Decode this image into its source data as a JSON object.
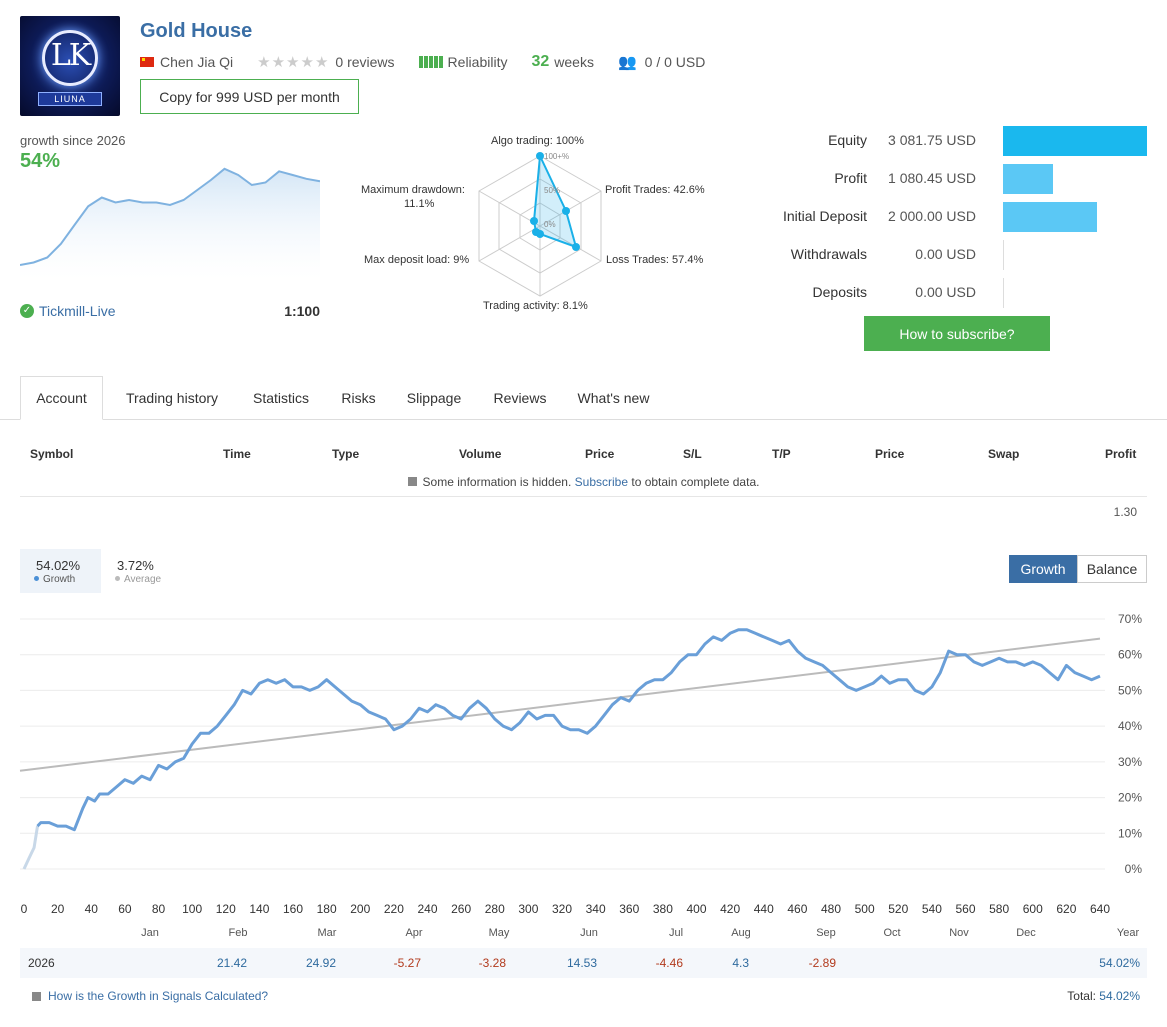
{
  "header": {
    "logo_text": "LK",
    "logo_brand": "LIUNA",
    "title": "Gold House",
    "author": "Chen Jia Qi",
    "reviews": "0 reviews",
    "reliability_label": "Reliability",
    "weeks_num": "32",
    "weeks_label": "weeks",
    "subscribers": "0 / 0 USD",
    "copy_button": "Copy for 999 USD per month"
  },
  "summary": {
    "growth_since": "growth since 2026",
    "growth_pct": "54%",
    "broker": "Tickmill-Live",
    "leverage": "1:100"
  },
  "radar": {
    "algo": "Algo trading: 100%",
    "profit_trades": "Profit Trades: 42.6%",
    "loss_trades": "Loss Trades: 57.4%",
    "activity": "Trading activity: 8.1%",
    "deposit_load": "Max deposit load: 9%",
    "drawdown_l1": "Maximum drawdown:",
    "drawdown_l2": "11.1%",
    "scale_100": "100+%",
    "scale_50": "50%",
    "scale_0": "0%"
  },
  "stats": [
    {
      "label": "Equity",
      "value": "3 081.75 USD",
      "fill": 1.0,
      "color": "#1ab8ee"
    },
    {
      "label": "Profit",
      "value": "1 080.45 USD",
      "fill": 0.35,
      "color": "#5bc8f5"
    },
    {
      "label": "Initial Deposit",
      "value": "2 000.00 USD",
      "fill": 0.65,
      "color": "#5bc8f5"
    },
    {
      "label": "Withdrawals",
      "value": "0.00 USD",
      "fill": 0,
      "color": "#5bc8f5"
    },
    {
      "label": "Deposits",
      "value": "0.00 USD",
      "fill": 0,
      "color": "#5bc8f5"
    }
  ],
  "subscribe_button": "How to subscribe?",
  "tabs": [
    "Account",
    "Trading history",
    "Statistics",
    "Risks",
    "Slippage",
    "Reviews",
    "What's new"
  ],
  "table": {
    "headers": [
      "Symbol",
      "Time",
      "Type",
      "Volume",
      "Price",
      "S/L",
      "T/P",
      "Price",
      "Swap",
      "Profit"
    ],
    "hidden_text_1": "Some information is hidden.",
    "hidden_link": "Subscribe",
    "hidden_text_2": "to obtain complete data.",
    "total_profit": "1.30"
  },
  "growth_panel": {
    "growth_value": "54.02%",
    "growth_label": "Growth",
    "average_value": "3.72%",
    "average_label": "Average",
    "btn_growth": "Growth",
    "btn_balance": "Balance"
  },
  "chart_data": {
    "type": "line",
    "x_ticks": [
      "0",
      "20",
      "40",
      "60",
      "80",
      "100",
      "120",
      "140",
      "160",
      "180",
      "200",
      "220",
      "240",
      "260",
      "280",
      "300",
      "320",
      "340",
      "360",
      "380",
      "400",
      "420",
      "440",
      "460",
      "480",
      "500",
      "520",
      "540",
      "560",
      "580",
      "600",
      "620",
      "640"
    ],
    "y_ticks": [
      "70%",
      "60%",
      "50%",
      "40%",
      "30%",
      "20%",
      "10%",
      "0%"
    ],
    "xlim": [
      0,
      640
    ],
    "ylim": [
      0,
      70
    ],
    "series": [
      {
        "name": "Growth",
        "color": "#6a9fd8",
        "points": [
          [
            0,
            0
          ],
          [
            3,
            3
          ],
          [
            6,
            6
          ],
          [
            8,
            12
          ],
          [
            10,
            13
          ],
          [
            15,
            13
          ],
          [
            20,
            12
          ],
          [
            25,
            12
          ],
          [
            30,
            11
          ],
          [
            35,
            17
          ],
          [
            38,
            20
          ],
          [
            42,
            19
          ],
          [
            45,
            21
          ],
          [
            50,
            21
          ],
          [
            55,
            23
          ],
          [
            60,
            25
          ],
          [
            65,
            24
          ],
          [
            70,
            26
          ],
          [
            75,
            25
          ],
          [
            80,
            29
          ],
          [
            85,
            28
          ],
          [
            90,
            30
          ],
          [
            95,
            31
          ],
          [
            100,
            35
          ],
          [
            105,
            38
          ],
          [
            110,
            38
          ],
          [
            115,
            40
          ],
          [
            120,
            43
          ],
          [
            125,
            46
          ],
          [
            130,
            50
          ],
          [
            135,
            49
          ],
          [
            140,
            52
          ],
          [
            145,
            53
          ],
          [
            150,
            52
          ],
          [
            155,
            53
          ],
          [
            160,
            51
          ],
          [
            165,
            51
          ],
          [
            170,
            50
          ],
          [
            175,
            51
          ],
          [
            180,
            53
          ],
          [
            185,
            51
          ],
          [
            190,
            49
          ],
          [
            195,
            47
          ],
          [
            200,
            46
          ],
          [
            205,
            44
          ],
          [
            210,
            43
          ],
          [
            215,
            42
          ],
          [
            220,
            39
          ],
          [
            225,
            40
          ],
          [
            230,
            42
          ],
          [
            235,
            45
          ],
          [
            240,
            44
          ],
          [
            245,
            46
          ],
          [
            250,
            45
          ],
          [
            255,
            43
          ],
          [
            260,
            42
          ],
          [
            265,
            45
          ],
          [
            270,
            47
          ],
          [
            275,
            45
          ],
          [
            280,
            42
          ],
          [
            285,
            40
          ],
          [
            290,
            39
          ],
          [
            295,
            41
          ],
          [
            300,
            44
          ],
          [
            305,
            42
          ],
          [
            310,
            43
          ],
          [
            315,
            43
          ],
          [
            320,
            40
          ],
          [
            325,
            39
          ],
          [
            330,
            39
          ],
          [
            335,
            38
          ],
          [
            340,
            40
          ],
          [
            345,
            43
          ],
          [
            350,
            46
          ],
          [
            355,
            48
          ],
          [
            360,
            47
          ],
          [
            365,
            50
          ],
          [
            370,
            52
          ],
          [
            375,
            53
          ],
          [
            380,
            53
          ],
          [
            385,
            55
          ],
          [
            390,
            58
          ],
          [
            395,
            60
          ],
          [
            400,
            60
          ],
          [
            405,
            63
          ],
          [
            410,
            65
          ],
          [
            415,
            64
          ],
          [
            420,
            66
          ],
          [
            425,
            67
          ],
          [
            430,
            67
          ],
          [
            435,
            66
          ],
          [
            440,
            65
          ],
          [
            445,
            64
          ],
          [
            450,
            63
          ],
          [
            455,
            64
          ],
          [
            460,
            61
          ],
          [
            465,
            59
          ],
          [
            470,
            58
          ],
          [
            475,
            57
          ],
          [
            480,
            55
          ],
          [
            485,
            53
          ],
          [
            490,
            51
          ],
          [
            495,
            50
          ],
          [
            500,
            51
          ],
          [
            505,
            52
          ],
          [
            510,
            54
          ],
          [
            515,
            52
          ],
          [
            520,
            53
          ],
          [
            525,
            53
          ],
          [
            530,
            50
          ],
          [
            535,
            49
          ],
          [
            540,
            51
          ],
          [
            545,
            55
          ],
          [
            550,
            61
          ],
          [
            555,
            60
          ],
          [
            560,
            60
          ],
          [
            565,
            58
          ],
          [
            570,
            57
          ],
          [
            575,
            58
          ],
          [
            580,
            59
          ],
          [
            585,
            58
          ],
          [
            590,
            58
          ],
          [
            595,
            57
          ],
          [
            600,
            58
          ],
          [
            605,
            57
          ],
          [
            610,
            55
          ],
          [
            615,
            53
          ],
          [
            620,
            57
          ],
          [
            625,
            55
          ],
          [
            630,
            54
          ],
          [
            635,
            53
          ],
          [
            640,
            54
          ]
        ]
      },
      {
        "name": "Average",
        "color": "#bbbbbb",
        "points": [
          [
            0,
            27.5
          ],
          [
            640,
            64.5
          ]
        ]
      }
    ],
    "months": [
      "Jan",
      "Feb",
      "Mar",
      "Apr",
      "May",
      "Jun",
      "Jul",
      "Aug",
      "Sep",
      "Oct",
      "Nov",
      "Dec",
      "Year"
    ],
    "year_row": {
      "year": "2026",
      "values": [
        "",
        "21.42",
        "24.92",
        "-5.27",
        "-3.28",
        "14.53",
        "-4.46",
        "4.3",
        "-2.89",
        "",
        "",
        "",
        ""
      ],
      "year_total": "54.02%"
    }
  },
  "mini_chart": {
    "points": [
      [
        0,
        8
      ],
      [
        5,
        10
      ],
      [
        10,
        14
      ],
      [
        15,
        25
      ],
      [
        20,
        40
      ],
      [
        25,
        55
      ],
      [
        30,
        62
      ],
      [
        35,
        58
      ],
      [
        40,
        60
      ],
      [
        45,
        58
      ],
      [
        50,
        58
      ],
      [
        55,
        56
      ],
      [
        60,
        60
      ],
      [
        65,
        68
      ],
      [
        70,
        76
      ],
      [
        75,
        85
      ],
      [
        80,
        80
      ],
      [
        85,
        72
      ],
      [
        90,
        74
      ],
      [
        95,
        83
      ],
      [
        100,
        80
      ],
      [
        105,
        77
      ],
      [
        110,
        75
      ]
    ]
  },
  "footer": {
    "link": "How is the Growth in Signals Calculated?",
    "total_label": "Total:",
    "total_value": "54.02%"
  }
}
